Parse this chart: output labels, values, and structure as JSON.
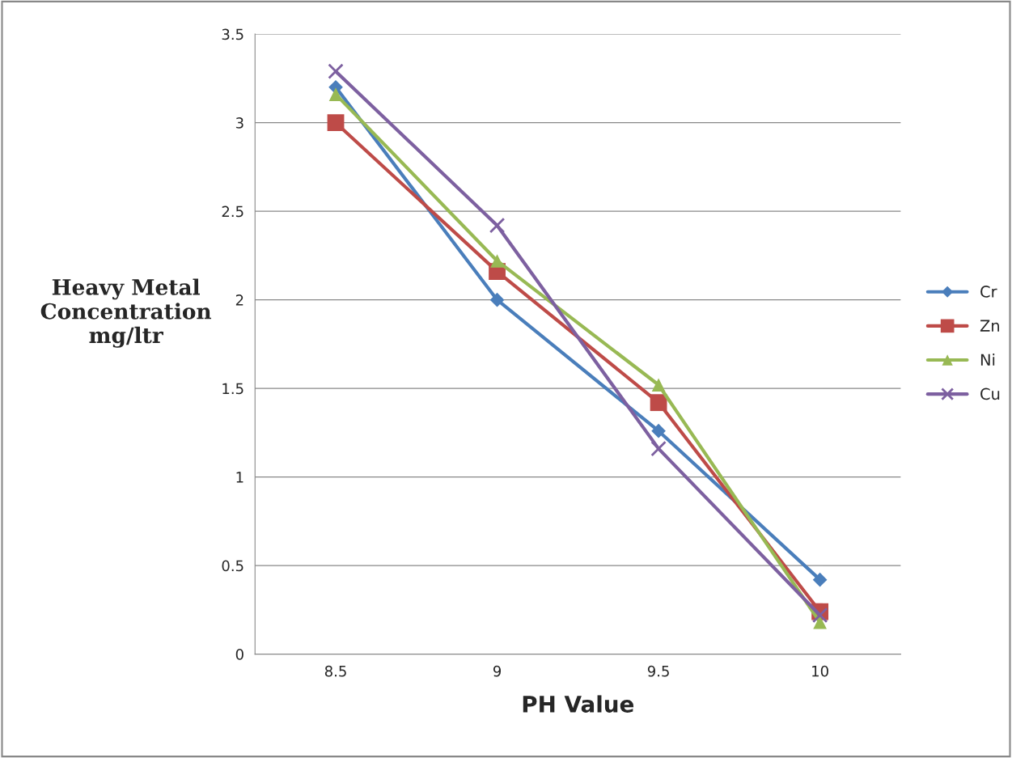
{
  "chart_data": {
    "type": "line",
    "xlabel": "PH Value",
    "ylabel": "Heavy Metal\nConcentration\nmg/ltr",
    "categories": [
      "8.5",
      "9",
      "9.5",
      "10"
    ],
    "series": [
      {
        "name": "Cr",
        "color": "#4a7ebb",
        "marker": "diamond",
        "values": [
          3.2,
          2.0,
          1.26,
          0.42
        ]
      },
      {
        "name": "Zn",
        "color": "#be4b48",
        "marker": "square",
        "values": [
          3.0,
          2.16,
          1.42,
          0.24
        ]
      },
      {
        "name": "Ni",
        "color": "#98b954",
        "marker": "triangle",
        "values": [
          3.16,
          2.22,
          1.52,
          0.18
        ]
      },
      {
        "name": "Cu",
        "color": "#7d60a0",
        "marker": "cross",
        "values": [
          3.29,
          2.42,
          1.16,
          0.22
        ]
      }
    ],
    "ylim": [
      0,
      3.5
    ],
    "yticks": [
      0,
      0.5,
      1,
      1.5,
      2,
      2.5,
      3,
      3.5
    ],
    "grid": "y",
    "legend": "right",
    "line_style": "solid"
  }
}
